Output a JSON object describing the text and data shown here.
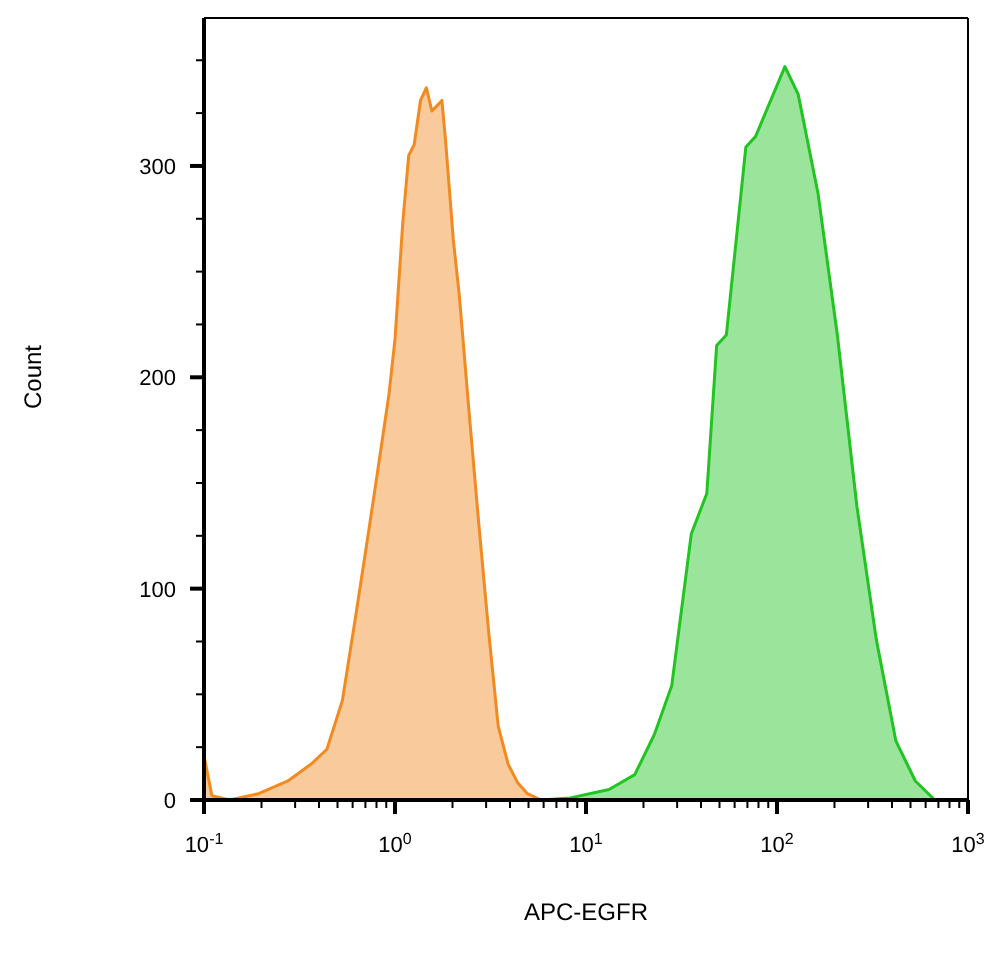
{
  "chart_data": {
    "type": "area",
    "xlabel": "APC-EGFR",
    "ylabel": "Count",
    "log": "x",
    "xlim": [
      0.1,
      1000
    ],
    "ylim": [
      0,
      370
    ],
    "xticks": [
      {
        "value": 0.1,
        "label": "10$^{-1}$"
      },
      {
        "value": 0.2,
        "label": null
      },
      {
        "value": 0.3,
        "label": null
      },
      {
        "value": 0.4,
        "label": null
      },
      {
        "value": 0.5,
        "label": null
      },
      {
        "value": 0.6,
        "label": null
      },
      {
        "value": 0.7,
        "label": null
      },
      {
        "value": 0.8,
        "label": null
      },
      {
        "value": 0.9,
        "label": null
      },
      {
        "value": 1,
        "label": "10$^{0}$"
      },
      {
        "value": 2,
        "label": null
      },
      {
        "value": 3,
        "label": null
      },
      {
        "value": 4,
        "label": null
      },
      {
        "value": 5,
        "label": null
      },
      {
        "value": 6,
        "label": null
      },
      {
        "value": 7,
        "label": null
      },
      {
        "value": 8,
        "label": null
      },
      {
        "value": 9,
        "label": null
      },
      {
        "value": 10,
        "label": "10$^{1}$"
      },
      {
        "value": 20,
        "label": null
      },
      {
        "value": 30,
        "label": null
      },
      {
        "value": 40,
        "label": null
      },
      {
        "value": 50,
        "label": null
      },
      {
        "value": 60,
        "label": null
      },
      {
        "value": 70,
        "label": null
      },
      {
        "value": 80,
        "label": null
      },
      {
        "value": 90,
        "label": null
      },
      {
        "value": 100,
        "label": "10$^{2}$"
      },
      {
        "value": 200,
        "label": null
      },
      {
        "value": 300,
        "label": null
      },
      {
        "value": 400,
        "label": null
      },
      {
        "value": 500,
        "label": null
      },
      {
        "value": 600,
        "label": null
      },
      {
        "value": 700,
        "label": null
      },
      {
        "value": 800,
        "label": null
      },
      {
        "value": 900,
        "label": null
      },
      {
        "value": 1000,
        "label": "10$^{3}$"
      }
    ],
    "yticks": [
      0,
      {
        "value": 25,
        "label": null
      },
      {
        "value": 50,
        "label": null
      },
      {
        "value": 75,
        "label": null
      },
      100,
      {
        "value": 125,
        "label": null
      },
      {
        "value": 150,
        "label": null
      },
      {
        "value": 175,
        "label": null
      },
      200,
      {
        "value": 225,
        "label": null
      },
      {
        "value": 250,
        "label": null
      },
      {
        "value": 275,
        "label": null
      },
      300,
      {
        "value": 325,
        "label": null
      },
      {
        "value": 350,
        "label": null
      }
    ],
    "series": [
      {
        "color": "#f28a22",
        "x": [
          0.1,
          0.11,
          0.136,
          0.193,
          0.275,
          0.364,
          0.44,
          0.53,
          0.625,
          0.736,
          0.828,
          0.93,
          1.0,
          1.1,
          1.18,
          1.26,
          1.36,
          1.46,
          1.56,
          1.68,
          1.76,
          1.84,
          2.02,
          2.17,
          2.44,
          2.75,
          3.09,
          3.47,
          3.91,
          4.4,
          4.94,
          5.82
        ],
        "values": [
          21,
          2,
          0,
          3,
          9,
          17,
          24,
          47,
          88,
          130,
          161,
          192,
          218,
          274,
          305,
          310,
          331,
          337,
          326,
          329,
          331,
          312,
          265,
          239,
          184,
          130,
          80,
          35,
          17,
          8,
          3,
          0
        ]
      },
      {
        "color": "#22c422",
        "x": [
          5.82,
          8.28,
          13.2,
          18.0,
          22.8,
          28.1,
          35.6,
          42.9,
          48.3,
          54.3,
          68.7,
          77.3,
          110,
          129,
          164,
          207,
          262,
          331,
          419,
          530,
          671,
          910
        ],
        "values": [
          0,
          1,
          5,
          12,
          31,
          54,
          126,
          145,
          215,
          220,
          309,
          314,
          347,
          334,
          287,
          220,
          139,
          76,
          28,
          9,
          0,
          0
        ]
      }
    ]
  }
}
